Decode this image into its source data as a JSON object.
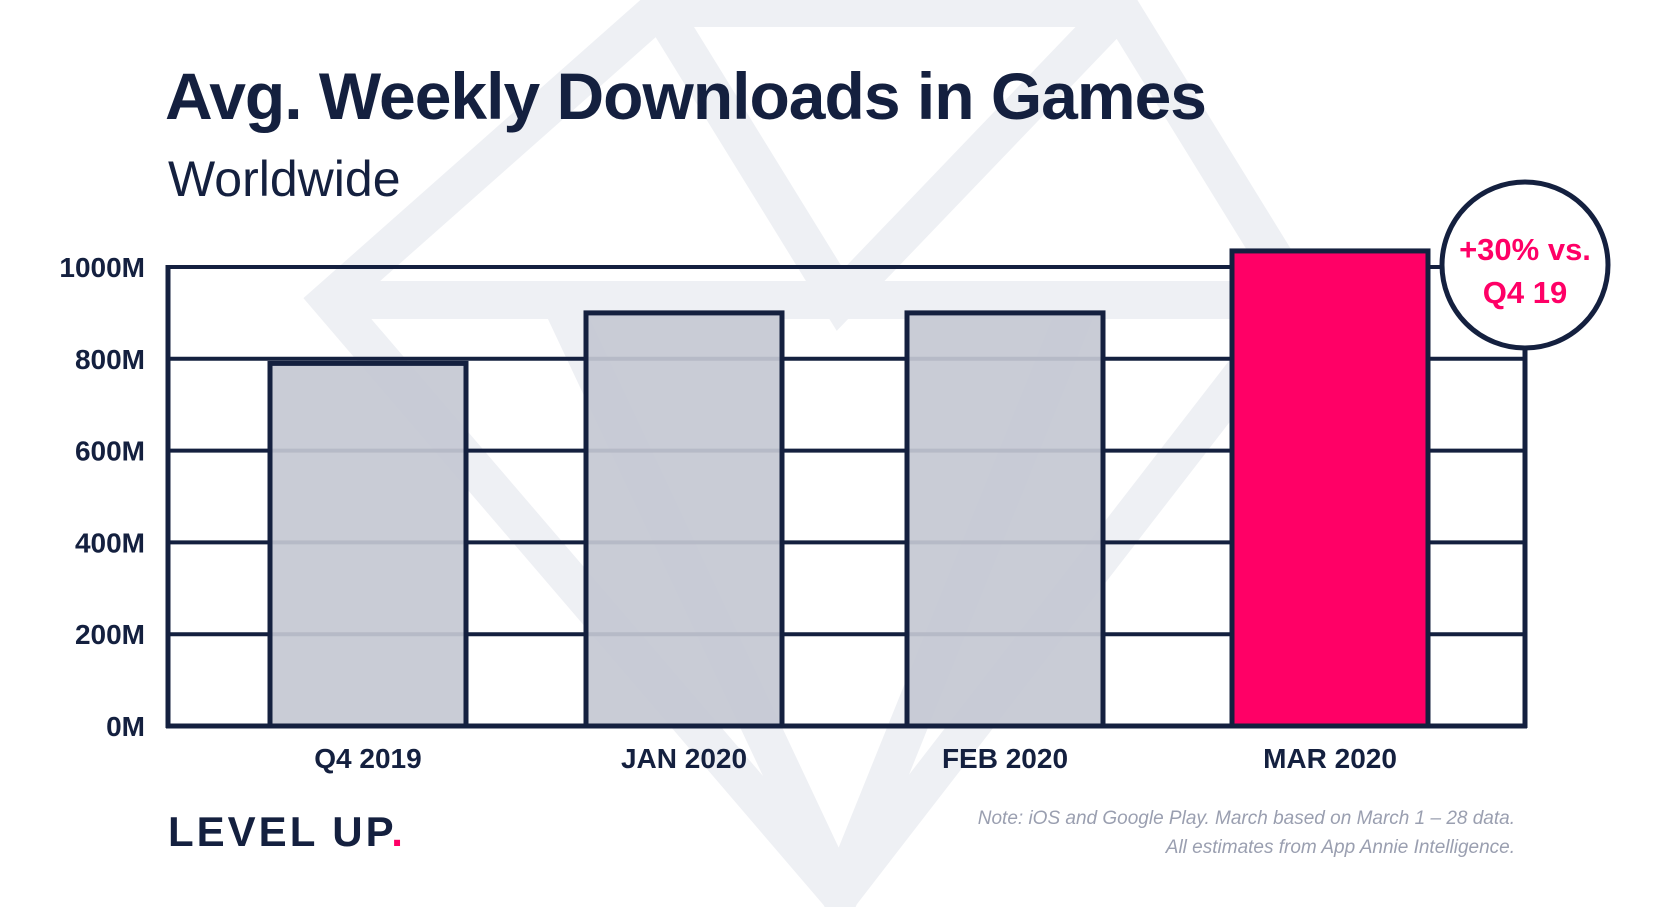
{
  "header": {
    "title": "Avg. Weekly Downloads in Games",
    "subtitle": "Worldwide"
  },
  "footer": {
    "logo_text": "LEVEL UP",
    "logo_dot": ".",
    "note_line1": "Note: iOS and Google Play. March based on March 1 – 28 data.",
    "note_line2": "All estimates from App Annie Intelligence."
  },
  "callout": {
    "line1": "+30% vs.",
    "line2": "Q4 19"
  },
  "colors": {
    "navy": "#14203f",
    "bar": "#c4c8d3",
    "highlight": "#ff0066",
    "watermark": "#eef0f4"
  },
  "chart_data": {
    "type": "bar",
    "title": "Avg. Weekly Downloads in Games",
    "subtitle": "Worldwide",
    "categories": [
      "Q4 2019",
      "JAN 2020",
      "FEB 2020",
      "MAR 2020"
    ],
    "values": [
      790,
      900,
      900,
      1035
    ],
    "highlight_index": 3,
    "ylim": [
      0,
      1000
    ],
    "yticks": [
      0,
      200,
      400,
      600,
      800,
      1000
    ],
    "ytick_labels": [
      "0M",
      "200M",
      "400M",
      "600M",
      "800M",
      "1000M"
    ],
    "grid": true,
    "xlabel": "",
    "ylabel": ""
  }
}
